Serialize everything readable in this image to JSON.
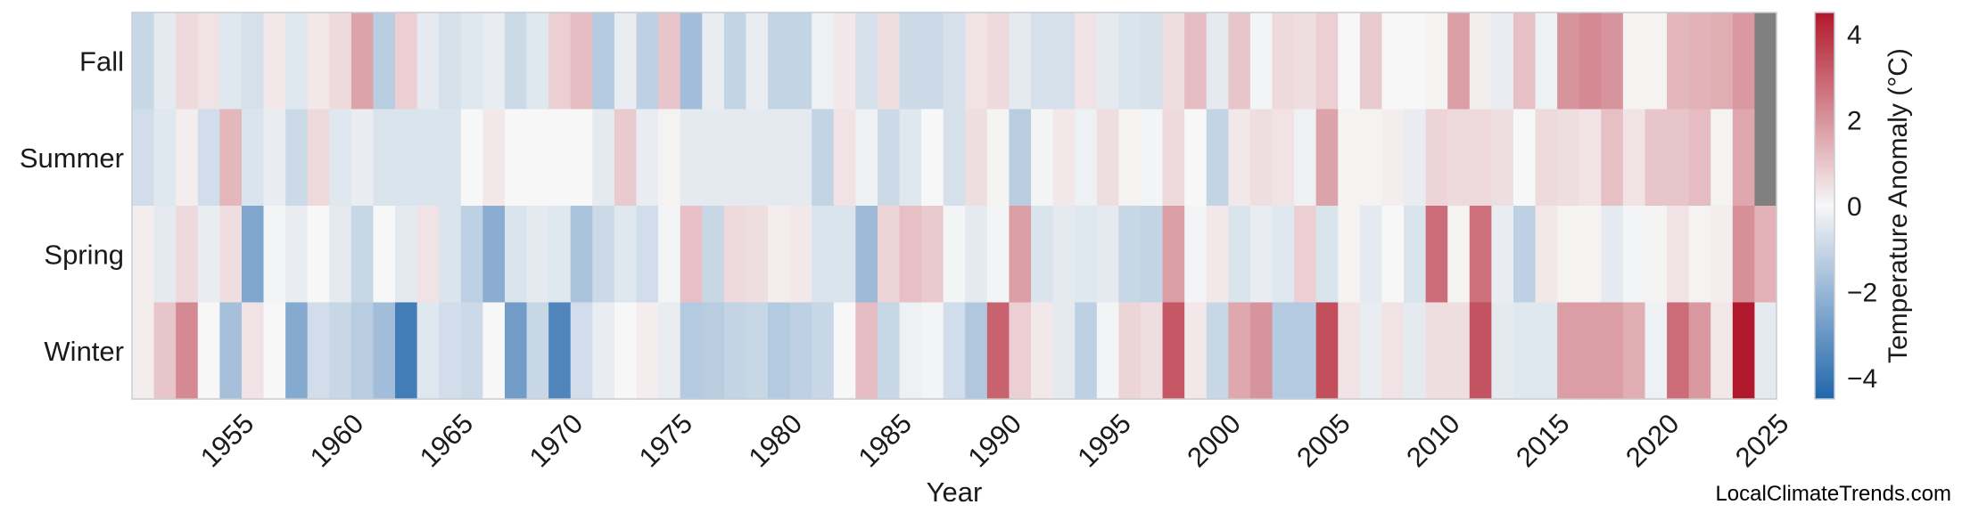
{
  "chart_data": {
    "type": "heatmap",
    "title": "",
    "xlabel": "Year",
    "ylabel": "",
    "x_tick_labels": [
      "1955",
      "1960",
      "1965",
      "1970",
      "1975",
      "1980",
      "1985",
      "1990",
      "1995",
      "2000",
      "2005",
      "2010",
      "2015",
      "2020",
      "2025"
    ],
    "x_range": [
      1950.5,
      2025.5
    ],
    "rows": [
      "Fall",
      "Summer",
      "Spring",
      "Winter"
    ],
    "years": [
      1951,
      1952,
      1953,
      1954,
      1955,
      1956,
      1957,
      1958,
      1959,
      1960,
      1961,
      1962,
      1963,
      1964,
      1965,
      1966,
      1967,
      1968,
      1969,
      1970,
      1971,
      1972,
      1973,
      1974,
      1975,
      1976,
      1977,
      1978,
      1979,
      1980,
      1981,
      1982,
      1983,
      1984,
      1985,
      1986,
      1987,
      1988,
      1989,
      1990,
      1991,
      1992,
      1993,
      1994,
      1995,
      1996,
      1997,
      1998,
      1999,
      2000,
      2001,
      2002,
      2003,
      2004,
      2005,
      2006,
      2007,
      2008,
      2009,
      2010,
      2011,
      2012,
      2013,
      2014,
      2015,
      2016,
      2017,
      2018,
      2019,
      2020,
      2021,
      2022,
      2023,
      2024,
      2025
    ],
    "values": {
      "Fall": [
        -1.0,
        -0.4,
        0.6,
        0.4,
        -0.5,
        -0.7,
        0.3,
        -0.5,
        0.3,
        0.6,
        1.7,
        -1.3,
        0.8,
        -0.4,
        -0.7,
        -0.5,
        -0.3,
        -0.9,
        -0.5,
        0.8,
        1.2,
        -1.4,
        -0.3,
        -1.2,
        1.0,
        -1.8,
        -0.3,
        -1.1,
        -0.3,
        -1.1,
        -1.1,
        -0.2,
        0.3,
        -0.7,
        0.5,
        -0.9,
        -0.9,
        -0.7,
        0.4,
        0.6,
        -0.4,
        -0.7,
        -0.7,
        0.4,
        -0.4,
        -0.6,
        -0.7,
        0.5,
        1.2,
        -0.4,
        1.0,
        -0.1,
        0.6,
        0.5,
        0.8,
        0.0,
        0.9,
        0.0,
        0.0,
        0.1,
        1.8,
        0.2,
        -0.3,
        1.1,
        -0.2,
        2.0,
        2.2,
        2.0,
        0.1,
        0.1,
        1.3,
        1.4,
        1.5,
        1.9,
        null
      ],
      "Summer": [
        -0.8,
        -0.5,
        0.2,
        -0.8,
        1.3,
        -0.6,
        -0.3,
        -0.9,
        0.6,
        -0.5,
        -0.3,
        -0.6,
        -0.6,
        -0.6,
        -0.6,
        0.0,
        0.3,
        0.0,
        0.0,
        0.0,
        0.0,
        -0.4,
        0.9,
        -0.3,
        0.1,
        -0.4,
        -0.4,
        -0.4,
        -0.4,
        -0.4,
        -0.4,
        -1.1,
        0.4,
        -0.2,
        -0.9,
        -0.5,
        0.0,
        -0.7,
        0.5,
        0.1,
        -1.3,
        -0.1,
        0.3,
        -0.2,
        0.5,
        0.1,
        -0.1,
        0.6,
        0.0,
        -1.1,
        0.3,
        0.5,
        0.4,
        -0.2,
        1.7,
        0.1,
        0.1,
        0.2,
        -0.3,
        0.7,
        0.6,
        0.6,
        0.5,
        0.0,
        0.6,
        0.5,
        0.4,
        1.1,
        0.4,
        1.0,
        1.0,
        1.2,
        0.1,
        1.6,
        null
      ],
      "Spring": [
        0.2,
        -0.4,
        0.6,
        -0.3,
        0.5,
        -2.5,
        -0.1,
        -0.3,
        0.0,
        -0.4,
        -1.0,
        0.0,
        -0.4,
        0.4,
        -0.6,
        -1.2,
        -2.3,
        -0.6,
        -0.4,
        -0.5,
        -1.6,
        -0.9,
        -0.5,
        -0.8,
        -0.1,
        1.1,
        -1.0,
        0.6,
        0.5,
        0.2,
        0.3,
        -0.6,
        -0.6,
        -1.9,
        0.7,
        1.1,
        0.9,
        -0.1,
        -0.4,
        -0.1,
        1.8,
        -0.6,
        -0.4,
        -0.5,
        -0.4,
        -1.0,
        -1.1,
        1.8,
        -0.1,
        0.3,
        -0.6,
        -0.3,
        -0.5,
        0.8,
        -0.6,
        0.1,
        -0.4,
        0.0,
        -0.6,
        2.8,
        0.1,
        2.7,
        -0.3,
        -1.2,
        0.3,
        0.1,
        0.1,
        -0.4,
        -0.1,
        0.1,
        0.4,
        0.1,
        0.2,
        2.1,
        1.4
      ],
      "Winter": [
        0.2,
        1.0,
        2.2,
        0.0,
        -1.7,
        0.4,
        0.0,
        -2.4,
        -0.8,
        -1.0,
        -1.3,
        -1.8,
        -3.8,
        -0.5,
        -0.8,
        -0.9,
        0.0,
        -2.8,
        -1.0,
        -3.5,
        -0.8,
        -0.3,
        0.0,
        0.2,
        -0.3,
        -1.4,
        -1.3,
        -1.1,
        -1.0,
        -1.4,
        -1.2,
        -1.0,
        0.0,
        1.2,
        -1.0,
        -0.2,
        -0.1,
        -0.8,
        -1.5,
        3.0,
        0.8,
        0.3,
        -0.4,
        -1.2,
        -0.1,
        0.7,
        0.5,
        3.2,
        0.3,
        -1.0,
        1.6,
        2.0,
        -1.4,
        -1.4,
        3.4,
        0.4,
        -0.3,
        0.4,
        -0.4,
        0.5,
        0.5,
        3.3,
        -0.4,
        -0.5,
        -0.5,
        1.8,
        1.8,
        1.8,
        1.5,
        -0.2,
        2.8,
        1.9,
        0.3,
        4.5,
        -0.4
      ]
    },
    "missing_color": "#808080",
    "colorbar": {
      "label": "Temperature Anomaly (°C)",
      "min": -4.5,
      "max": 4.5,
      "tick_values": [
        -4,
        -2,
        0,
        2,
        4
      ],
      "tick_labels": [
        "−4",
        "−2",
        "0",
        "2",
        "4"
      ],
      "colors": [
        "#2166ac",
        "#f7f7f7",
        "#b2182b"
      ]
    },
    "grid": false
  },
  "watermark": "LocalClimateTrends.com"
}
